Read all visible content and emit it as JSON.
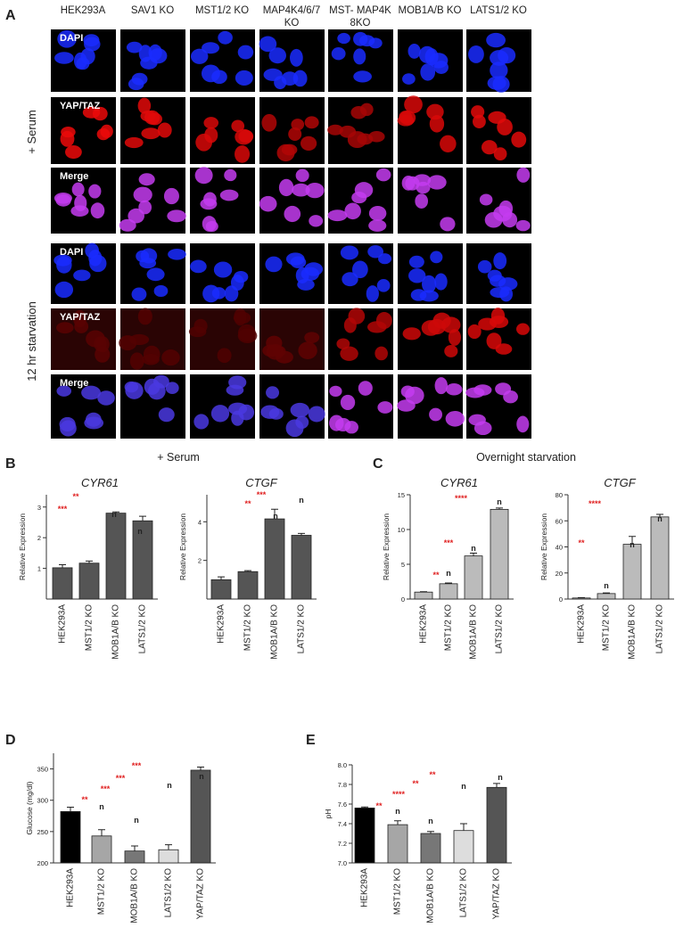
{
  "panel_a": {
    "letter": "A",
    "columns": [
      "HEK293A",
      "SAV1 KO",
      "MST1/2 KO",
      "MAP4K4/6/7 KO",
      "MST- MAP4K 8KO",
      "MOB1A/B KO",
      "LATS1/2 KO"
    ],
    "row_labels": [
      "DAPI",
      "YAP/TAZ",
      "Merge"
    ],
    "conditions": [
      "+ Serum",
      "12 hr starvation"
    ]
  },
  "panel_letters": [
    "B",
    "C",
    "D",
    "E"
  ],
  "panel_headers": [
    "+ Serum",
    "Overnight starvation"
  ],
  "chart_data": [
    {
      "type": "bar",
      "title": "CYR61",
      "ylabel": "Relative Expression",
      "categories": [
        "HEK293A",
        "MST1/2 KO",
        "MOB1A/B KO",
        "LATS1/2 KO"
      ],
      "values": [
        1.02,
        1.17,
        2.8,
        2.55
      ],
      "errors": [
        0.1,
        0.07,
        0.04,
        0.15
      ],
      "color": "#555555",
      "ylim": [
        0,
        3.4
      ],
      "yticks": [
        1,
        2,
        3
      ],
      "annotations": [
        "**",
        "***",
        "n",
        "n"
      ]
    },
    {
      "type": "bar",
      "title": "CTGF",
      "ylabel": "Relative Expression",
      "categories": [
        "HEK293A",
        "MST1/2 KO",
        "MOB1A/B KO",
        "LATS1/2 KO"
      ],
      "values": [
        1.0,
        1.42,
        4.15,
        3.3
      ],
      "errors": [
        0.15,
        0.05,
        0.5,
        0.1
      ],
      "color": "#555555",
      "ylim": [
        0,
        5.4
      ],
      "yticks": [
        2,
        4
      ],
      "annotations": [
        "***",
        "**",
        "n",
        "n"
      ]
    },
    {
      "type": "bar",
      "title": "CYR61",
      "ylabel": "Relative Expression",
      "categories": [
        "HEK293A",
        "MST1/2 KO",
        "MOB1A/B KO",
        "LATS1/2 KO"
      ],
      "values": [
        1.0,
        2.2,
        6.2,
        12.9
      ],
      "errors": [
        0.05,
        0.1,
        0.4,
        0.2
      ],
      "color": "#bbbbbb",
      "ylim": [
        0,
        15
      ],
      "yticks": [
        0,
        5,
        10,
        15
      ],
      "annotations": [
        "****",
        "***",
        "**",
        "n",
        "n",
        "n"
      ]
    },
    {
      "type": "bar",
      "title": "CTGF",
      "ylabel": "Relative Expression",
      "categories": [
        "HEK293A",
        "MST1/2 KO",
        "MOB1A/B KO",
        "LATS1/2 KO"
      ],
      "values": [
        0.8,
        4.2,
        42,
        63
      ],
      "errors": [
        0.3,
        0.5,
        6,
        2
      ],
      "color": "#bbbbbb",
      "ylim": [
        0,
        80
      ],
      "yticks": [
        0,
        20,
        40,
        60,
        80
      ],
      "annotations": [
        "****",
        "**",
        "n",
        "n",
        "n"
      ]
    },
    {
      "type": "bar",
      "ylabel": "Glucose (mg/dl)",
      "categories": [
        "HEK293A",
        "MST1/2 KO",
        "MOB1A/B KO",
        "LATS1/2 KO",
        "YAP/TAZ KO"
      ],
      "values": [
        282,
        243,
        219,
        221,
        348
      ],
      "errors": [
        7,
        10,
        8,
        8,
        5
      ],
      "colors": [
        "#000000",
        "#a6a6a6",
        "#777777",
        "#dddddd",
        "#555555"
      ],
      "ylim": [
        200,
        375
      ],
      "yticks": [
        200,
        250,
        300,
        350
      ],
      "annotations": [
        "***",
        "***",
        "***",
        "**",
        "n",
        "n",
        "n",
        "n"
      ]
    },
    {
      "type": "bar",
      "ylabel": "pH",
      "categories": [
        "HEK293A",
        "MST1/2 KO",
        "MOB1A/B KO",
        "LATS1/2 KO",
        "YAP/TAZ KO"
      ],
      "values": [
        7.56,
        7.39,
        7.3,
        7.33,
        7.77
      ],
      "errors": [
        0.01,
        0.04,
        0.02,
        0.07,
        0.04
      ],
      "colors": [
        "#000000",
        "#a6a6a6",
        "#777777",
        "#dddddd",
        "#555555"
      ],
      "ylim": [
        7.0,
        8.0
      ],
      "yticks": [
        {
          "value": 7.0,
          "label": "7.0"
        },
        7.2,
        7.4,
        7.6,
        7.8,
        {
          "value": 8.0,
          "label": "8.0"
        }
      ],
      "annotations": [
        "**",
        "**",
        "****",
        "**",
        "n",
        "n",
        "n",
        "n"
      ]
    }
  ]
}
